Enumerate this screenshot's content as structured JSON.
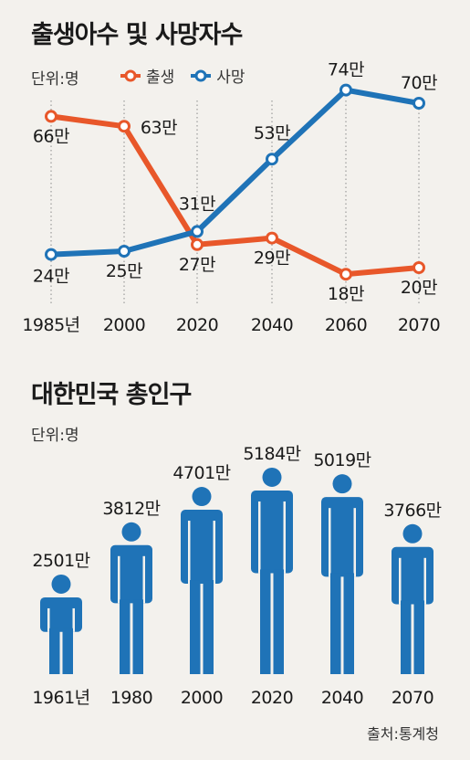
{
  "colors": {
    "birth": "#e8572a",
    "death": "#1f73b7",
    "figure": "#1f73b7",
    "grid": "#8a8a8a"
  },
  "chart_data": [
    {
      "type": "line",
      "title": "출생아수 및 사망자수",
      "unit_label": "단위:명",
      "categories": [
        "1985년",
        "2000",
        "2020",
        "2040",
        "2060",
        "2070"
      ],
      "series": [
        {
          "name": "출생",
          "values": [
            66,
            63,
            27,
            29,
            18,
            20
          ],
          "labels": [
            "66만",
            "63만",
            "27만",
            "29만",
            "18만",
            "20만"
          ]
        },
        {
          "name": "사망",
          "values": [
            24,
            25,
            31,
            53,
            74,
            70
          ],
          "labels": [
            "24만",
            "25만",
            "31만",
            "53만",
            "74만",
            "70만"
          ]
        }
      ],
      "ylim": [
        0,
        80
      ]
    },
    {
      "type": "bar",
      "title": "대한민국 총인구",
      "unit_label": "단위:명",
      "categories": [
        "1961년",
        "1980",
        "2000",
        "2020",
        "2040",
        "2070"
      ],
      "values": [
        2501,
        3812,
        4701,
        5184,
        5019,
        3766
      ],
      "labels": [
        "2501만",
        "3812만",
        "4701만",
        "5184만",
        "5019만",
        "3766만"
      ]
    }
  ],
  "source": "출처:통계청"
}
